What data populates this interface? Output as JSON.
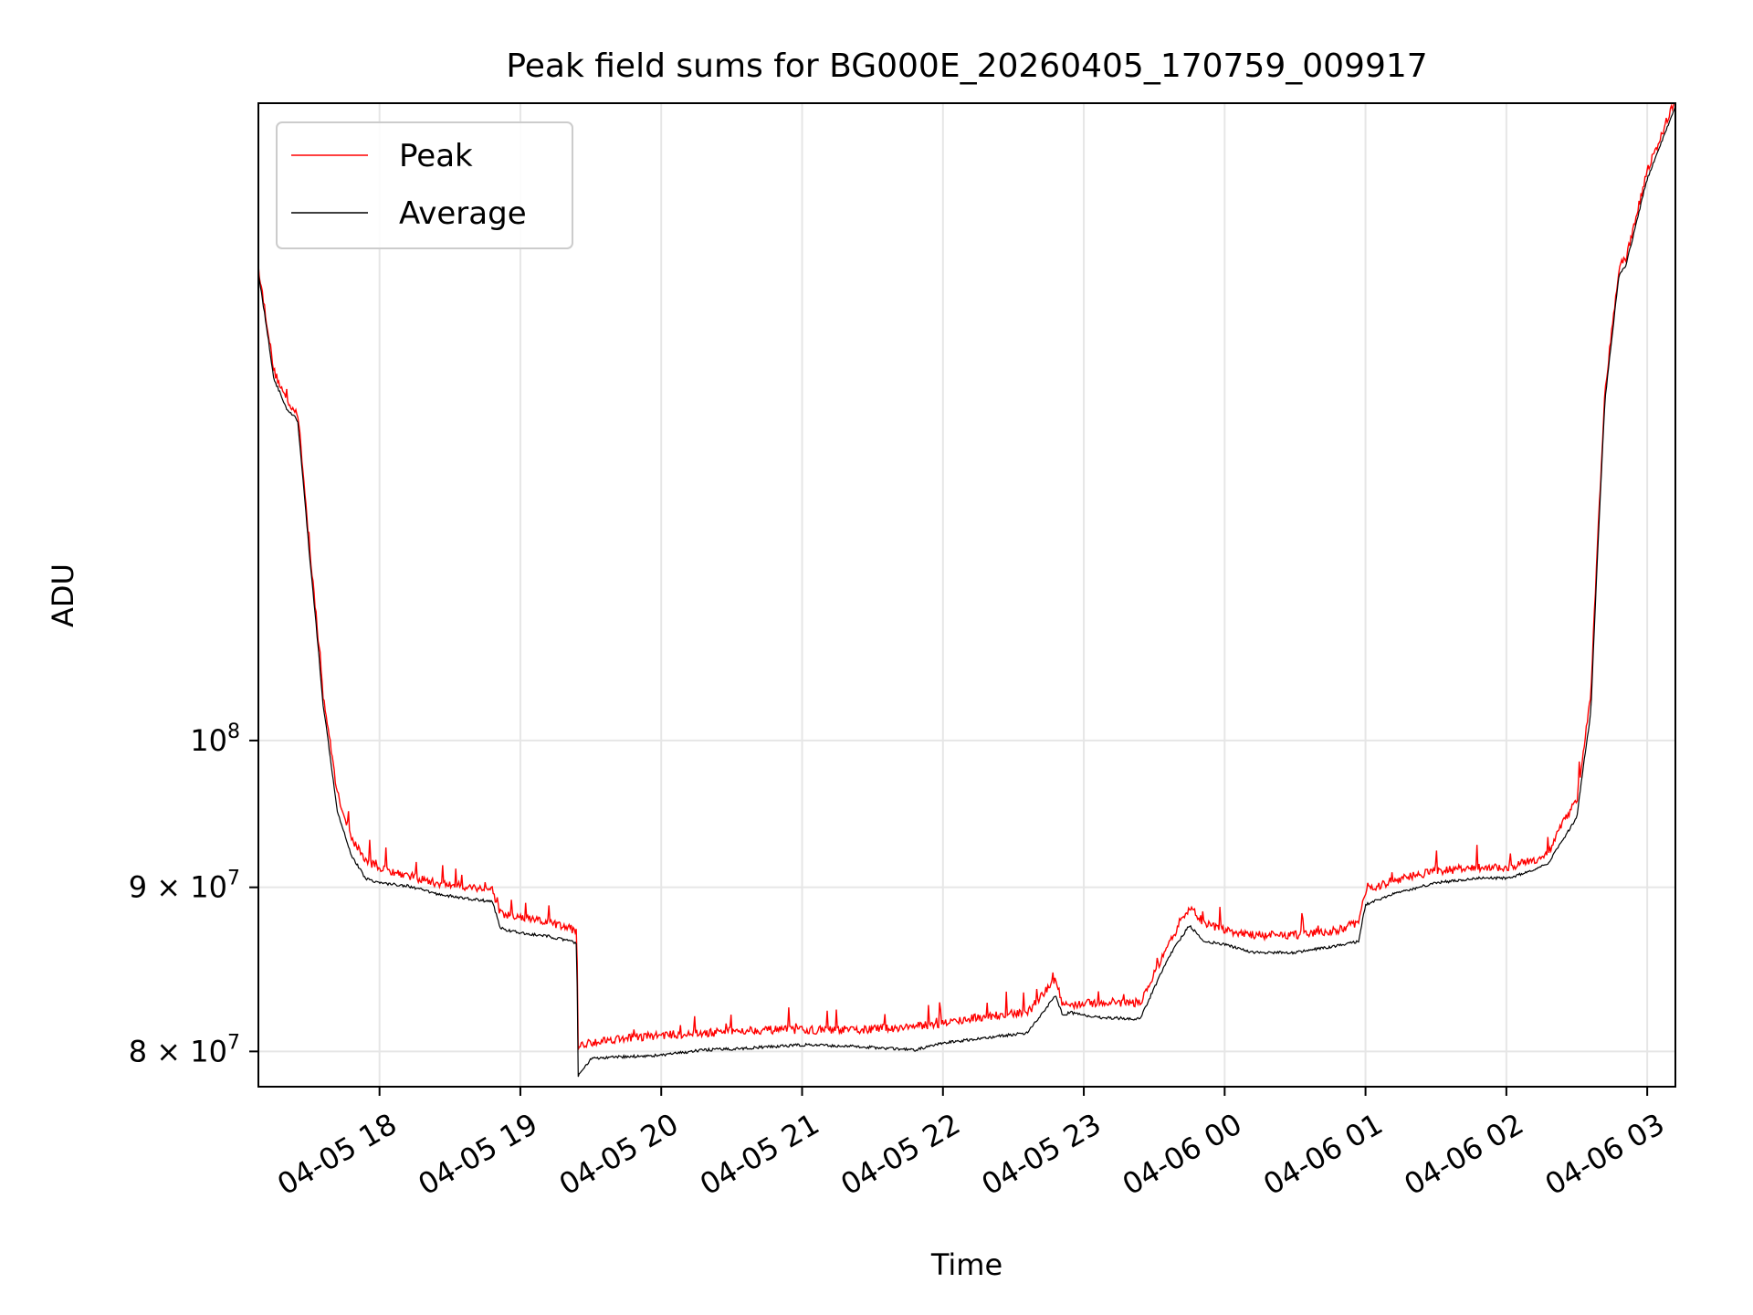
{
  "chart_data": {
    "type": "line",
    "title": "Peak field sums for BG000E_20260405_170759_009917",
    "xlabel": "Time",
    "ylabel": "ADU",
    "y_scale": "log",
    "x_units": "hours since 2026-04-05 17:00",
    "xlim": [
      0.14,
      10.2
    ],
    "ylim": [
      78000000,
      158000000
    ],
    "grid": true,
    "legend_position": "upper left",
    "x_ticks": [
      {
        "value": 1,
        "label": "04-05 18"
      },
      {
        "value": 2,
        "label": "04-05 19"
      },
      {
        "value": 3,
        "label": "04-05 20"
      },
      {
        "value": 4,
        "label": "04-05 21"
      },
      {
        "value": 5,
        "label": "04-05 22"
      },
      {
        "value": 6,
        "label": "04-05 23"
      },
      {
        "value": 7,
        "label": "04-06 00"
      },
      {
        "value": 8,
        "label": "04-06 01"
      },
      {
        "value": 9,
        "label": "04-06 02"
      },
      {
        "value": 10,
        "label": "04-06 03"
      }
    ],
    "y_ticks": [
      {
        "value": 80000000,
        "base": "8",
        "mult": "×",
        "exp_base": "10",
        "exp": "7"
      },
      {
        "value": 90000000,
        "base": "9",
        "mult": "×",
        "exp_base": "10",
        "exp": "7"
      },
      {
        "value": 100000000,
        "base": "",
        "mult": "",
        "exp_base": "10",
        "exp": "8"
      }
    ],
    "series": [
      {
        "name": "Peak",
        "color": "#ff0000",
        "x": [
          0.14,
          0.25,
          0.35,
          0.4,
          0.42,
          0.5,
          0.6,
          0.7,
          0.8,
          0.9,
          1.0,
          1.2,
          1.4,
          1.6,
          1.8,
          1.86,
          2.0,
          2.2,
          2.4,
          2.41,
          2.5,
          2.7,
          3.0,
          3.3,
          3.6,
          4.0,
          4.4,
          4.8,
          5.0,
          5.3,
          5.6,
          5.8,
          5.85,
          5.9,
          5.95,
          6.1,
          6.4,
          6.6,
          6.75,
          6.85,
          7.0,
          7.2,
          7.5,
          7.8,
          7.95,
          8.0,
          8.2,
          8.5,
          8.8,
          9.0,
          9.2,
          9.3,
          9.4,
          9.5,
          9.6,
          9.7,
          9.8,
          9.85,
          9.9,
          10.0,
          10.2
        ],
        "values": [
          140000000,
          130000000,
          127000000,
          126500000,
          126000000,
          115000000,
          103000000,
          96000000,
          93000000,
          91500000,
          91000000,
          90500000,
          90000000,
          89800000,
          89600000,
          88000000,
          87800000,
          87500000,
          87000000,
          80000000,
          80300000,
          80500000,
          80700000,
          80800000,
          81000000,
          81000000,
          81000000,
          81200000,
          81400000,
          81800000,
          82000000,
          84000000,
          82500000,
          82500000,
          82500000,
          82600000,
          82600000,
          86000000,
          88500000,
          87500000,
          87000000,
          86700000,
          86700000,
          87000000,
          87500000,
          89500000,
          90200000,
          90800000,
          91000000,
          91000000,
          91500000,
          92000000,
          94000000,
          95500000,
          103000000,
          128000000,
          140000000,
          141000000,
          144000000,
          150000000,
          158000000
        ]
      },
      {
        "name": "Average",
        "color": "#000000",
        "x": [
          0.14,
          0.25,
          0.35,
          0.4,
          0.42,
          0.5,
          0.6,
          0.7,
          0.8,
          0.9,
          1.0,
          1.2,
          1.4,
          1.6,
          1.8,
          1.86,
          2.0,
          2.2,
          2.4,
          2.41,
          2.5,
          2.7,
          3.0,
          3.3,
          3.6,
          4.0,
          4.4,
          4.8,
          5.0,
          5.3,
          5.6,
          5.8,
          5.85,
          5.9,
          5.95,
          6.1,
          6.4,
          6.6,
          6.75,
          6.85,
          7.0,
          7.2,
          7.5,
          7.8,
          7.95,
          8.0,
          8.2,
          8.5,
          8.8,
          9.0,
          9.2,
          9.3,
          9.4,
          9.5,
          9.6,
          9.7,
          9.8,
          9.85,
          9.9,
          10.0,
          10.2
        ],
        "values": [
          139800000,
          129500000,
          126500000,
          126000000,
          125500000,
          114500000,
          102500000,
          95000000,
          92000000,
          90500000,
          90200000,
          90000000,
          89500000,
          89200000,
          89000000,
          87300000,
          87000000,
          86800000,
          86400000,
          78500000,
          79500000,
          79600000,
          79700000,
          80000000,
          80100000,
          80300000,
          80200000,
          80000000,
          80400000,
          80700000,
          81000000,
          83200000,
          82000000,
          82200000,
          82100000,
          81900000,
          81800000,
          85500000,
          87500000,
          86500000,
          86300000,
          85800000,
          85800000,
          86200000,
          86500000,
          88800000,
          89500000,
          90200000,
          90500000,
          90500000,
          91000000,
          91500000,
          93000000,
          94500000,
          102000000,
          127500000,
          139500000,
          140500000,
          143500000,
          149500000,
          157500000
        ]
      }
    ]
  }
}
